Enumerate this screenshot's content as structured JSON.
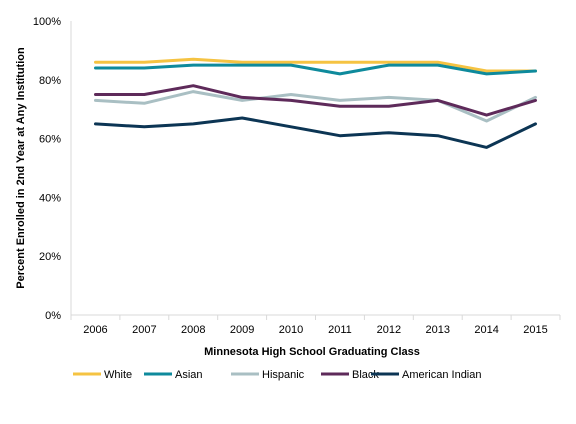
{
  "chart_data": {
    "type": "line",
    "xlabel": "Minnesota  High School Graduating  Class",
    "ylabel": "Percent Enrolled in 2nd Year at Any Institution",
    "x": [
      "2006",
      "2007",
      "2008",
      "2009",
      "2010",
      "2011",
      "2012",
      "2013",
      "2014",
      "2015"
    ],
    "ylim": [
      0,
      100
    ],
    "yticks": [
      0,
      20,
      40,
      60,
      80,
      100
    ],
    "ytick_labels": [
      "0%",
      "20%",
      "40%",
      "60%",
      "80%",
      "100%"
    ],
    "grid": "none",
    "legend_position": "bottom",
    "series": [
      {
        "name": "White",
        "color": "#f5c342",
        "values": [
          86,
          86,
          87,
          86,
          86,
          86,
          86,
          86,
          83,
          83
        ]
      },
      {
        "name": "Asian",
        "color": "#0e8a9c",
        "values": [
          84,
          84,
          85,
          85,
          85,
          82,
          85,
          85,
          82,
          83
        ]
      },
      {
        "name": "Hispanic",
        "color": "#a9bfc3",
        "values": [
          73,
          72,
          76,
          73,
          75,
          73,
          74,
          73,
          66,
          74
        ]
      },
      {
        "name": "Black",
        "color": "#5e2a5a",
        "values": [
          75,
          75,
          78,
          74,
          73,
          71,
          71,
          73,
          68,
          73
        ]
      },
      {
        "name": "American Indian",
        "color": "#0c3554",
        "values": [
          65,
          64,
          65,
          67,
          64,
          61,
          62,
          61,
          57,
          65
        ]
      }
    ]
  }
}
